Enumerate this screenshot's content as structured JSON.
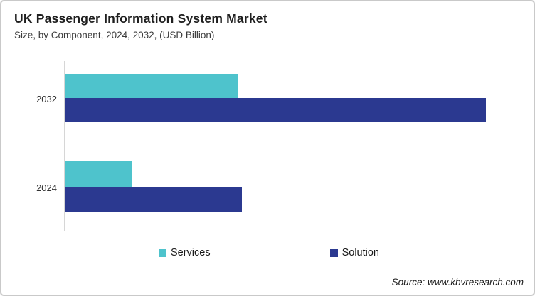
{
  "header": {
    "title": "UK Passenger Information System Market",
    "subtitle": "Size, by Component, 2024, 2032, (USD Billion)"
  },
  "chart_data": {
    "type": "bar",
    "orientation": "horizontal",
    "title": "UK Passenger Information System Market",
    "subtitle": "Size, by Component, 2024, 2032, (USD Billion)",
    "xlabel": "",
    "ylabel": "",
    "categories": [
      "2032",
      "2024"
    ],
    "series": [
      {
        "name": "Services",
        "color": "#4EC3CC",
        "values": [
          0.41,
          0.16
        ]
      },
      {
        "name": "Solution",
        "color": "#2B3990",
        "values": [
          1.0,
          0.42
        ]
      }
    ],
    "value_scale": "relative, no axis tick values shown; largest bar (Solution 2032) = 1.00",
    "xlim": [
      0,
      1.04
    ],
    "grid": false,
    "legend_position": "bottom",
    "axis_color": "#d6d6d6"
  },
  "footer": {
    "source": "Source: www.kbvresearch.com"
  }
}
